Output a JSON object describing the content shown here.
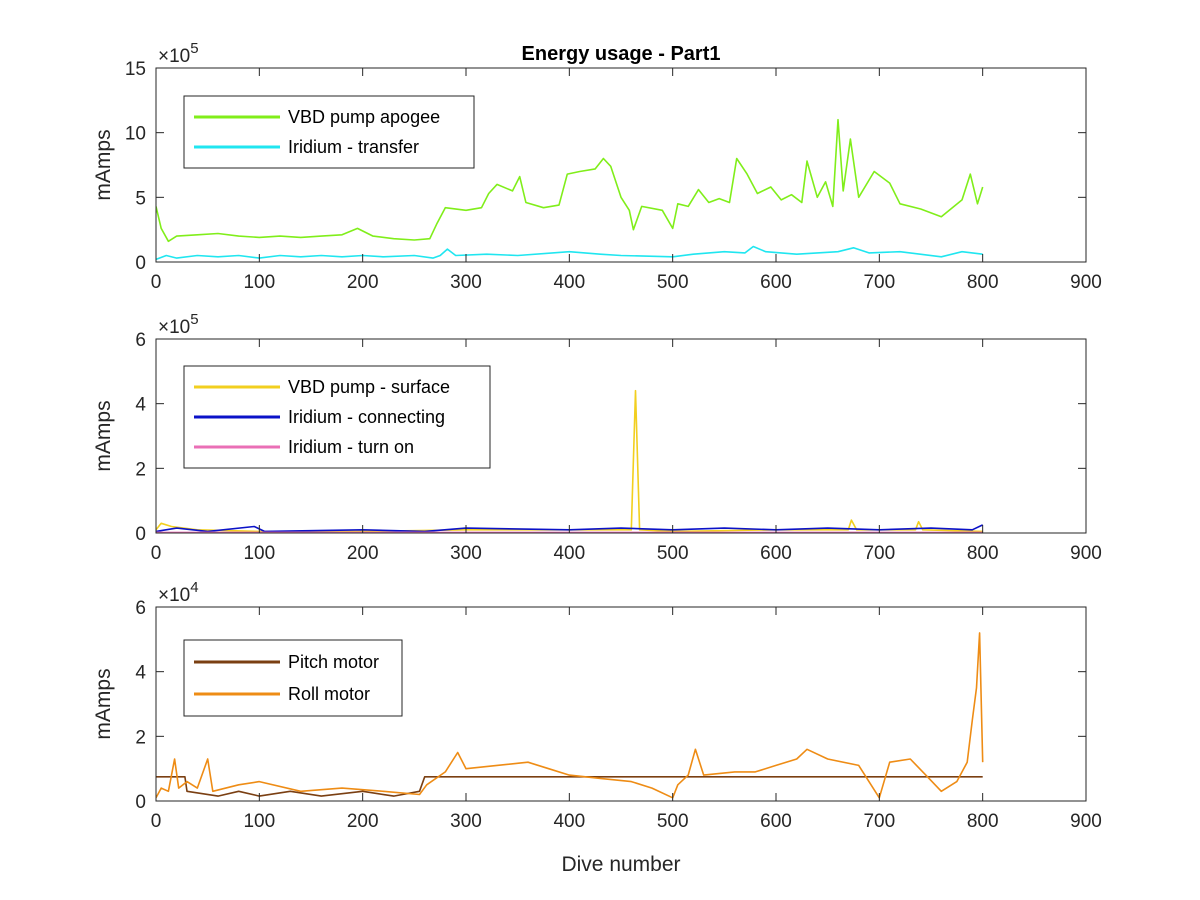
{
  "chart_data": [
    {
      "type": "line",
      "title": "Energy usage - Part1",
      "xlabel": "",
      "ylabel": "mAmps",
      "xlim": [
        0,
        900
      ],
      "ylim": [
        0,
        15
      ],
      "y_multiplier": "×10",
      "y_exponent": "5",
      "x_ticks": [
        "0",
        "100",
        "200",
        "300",
        "400",
        "500",
        "600",
        "700",
        "800",
        "900"
      ],
      "y_ticks": [
        "0",
        "5",
        "10",
        "15"
      ],
      "legend_position": "top-left",
      "series": [
        {
          "name": "VBD pump apogee",
          "color": "#80ee1a",
          "points": [
            [
              0,
              4.3
            ],
            [
              5,
              2.6
            ],
            [
              12,
              1.6
            ],
            [
              20,
              2.0
            ],
            [
              40,
              2.1
            ],
            [
              60,
              2.2
            ],
            [
              80,
              2.0
            ],
            [
              100,
              1.9
            ],
            [
              120,
              2.0
            ],
            [
              140,
              1.9
            ],
            [
              160,
              2.0
            ],
            [
              180,
              2.1
            ],
            [
              195,
              2.6
            ],
            [
              210,
              2.0
            ],
            [
              230,
              1.8
            ],
            [
              250,
              1.7
            ],
            [
              265,
              1.8
            ],
            [
              272,
              3.0
            ],
            [
              280,
              4.2
            ],
            [
              300,
              4.0
            ],
            [
              315,
              4.2
            ],
            [
              322,
              5.3
            ],
            [
              330,
              6.0
            ],
            [
              345,
              5.5
            ],
            [
              352,
              6.6
            ],
            [
              358,
              4.6
            ],
            [
              375,
              4.2
            ],
            [
              390,
              4.4
            ],
            [
              398,
              6.8
            ],
            [
              410,
              7.0
            ],
            [
              425,
              7.2
            ],
            [
              433,
              8.0
            ],
            [
              440,
              7.4
            ],
            [
              450,
              5.0
            ],
            [
              458,
              4.0
            ],
            [
              462,
              2.5
            ],
            [
              470,
              4.3
            ],
            [
              490,
              4.0
            ],
            [
              500,
              2.6
            ],
            [
              505,
              4.5
            ],
            [
              515,
              4.3
            ],
            [
              525,
              5.6
            ],
            [
              535,
              4.6
            ],
            [
              545,
              4.9
            ],
            [
              555,
              4.6
            ],
            [
              562,
              8.0
            ],
            [
              572,
              6.8
            ],
            [
              582,
              5.3
            ],
            [
              595,
              5.8
            ],
            [
              605,
              4.8
            ],
            [
              615,
              5.2
            ],
            [
              625,
              4.6
            ],
            [
              630,
              7.8
            ],
            [
              640,
              5.0
            ],
            [
              648,
              6.2
            ],
            [
              655,
              4.3
            ],
            [
              660,
              11.0
            ],
            [
              665,
              5.5
            ],
            [
              672,
              9.5
            ],
            [
              680,
              5.0
            ],
            [
              695,
              7.0
            ],
            [
              710,
              6.1
            ],
            [
              720,
              4.5
            ],
            [
              740,
              4.1
            ],
            [
              760,
              3.5
            ],
            [
              780,
              4.8
            ],
            [
              788,
              6.8
            ],
            [
              795,
              4.5
            ],
            [
              800,
              5.8
            ]
          ]
        },
        {
          "name": "Iridium - transfer",
          "color": "#20e6f0",
          "points": [
            [
              0,
              0.2
            ],
            [
              10,
              0.5
            ],
            [
              20,
              0.3
            ],
            [
              40,
              0.5
            ],
            [
              60,
              0.4
            ],
            [
              80,
              0.5
            ],
            [
              100,
              0.3
            ],
            [
              120,
              0.5
            ],
            [
              140,
              0.4
            ],
            [
              160,
              0.5
            ],
            [
              180,
              0.4
            ],
            [
              200,
              0.5
            ],
            [
              220,
              0.4
            ],
            [
              250,
              0.5
            ],
            [
              268,
              0.3
            ],
            [
              275,
              0.5
            ],
            [
              282,
              1.0
            ],
            [
              290,
              0.5
            ],
            [
              320,
              0.6
            ],
            [
              350,
              0.5
            ],
            [
              400,
              0.8
            ],
            [
              430,
              0.6
            ],
            [
              450,
              0.5
            ],
            [
              500,
              0.4
            ],
            [
              520,
              0.6
            ],
            [
              550,
              0.8
            ],
            [
              570,
              0.7
            ],
            [
              578,
              1.2
            ],
            [
              590,
              0.8
            ],
            [
              620,
              0.6
            ],
            [
              660,
              0.8
            ],
            [
              675,
              1.1
            ],
            [
              690,
              0.7
            ],
            [
              720,
              0.8
            ],
            [
              760,
              0.4
            ],
            [
              780,
              0.8
            ],
            [
              800,
              0.6
            ]
          ]
        }
      ]
    },
    {
      "type": "line",
      "title": "",
      "xlabel": "",
      "ylabel": "mAmps",
      "xlim": [
        0,
        900
      ],
      "ylim": [
        0,
        6
      ],
      "y_multiplier": "×10",
      "y_exponent": "5",
      "x_ticks": [
        "0",
        "100",
        "200",
        "300",
        "400",
        "500",
        "600",
        "700",
        "800",
        "900"
      ],
      "y_ticks": [
        "0",
        "2",
        "4",
        "6"
      ],
      "legend_position": "top-left",
      "series": [
        {
          "name": "VBD pump - surface",
          "color": "#f2cf1f",
          "points": [
            [
              0,
              0.1
            ],
            [
              5,
              0.3
            ],
            [
              15,
              0.2
            ],
            [
              40,
              0.1
            ],
            [
              100,
              0.05
            ],
            [
              200,
              0.05
            ],
            [
              300,
              0.1
            ],
            [
              400,
              0.1
            ],
            [
              460,
              0.1
            ],
            [
              464,
              4.4
            ],
            [
              468,
              0.1
            ],
            [
              500,
              0.05
            ],
            [
              600,
              0.1
            ],
            [
              670,
              0.1
            ],
            [
              673,
              0.4
            ],
            [
              678,
              0.1
            ],
            [
              735,
              0.1
            ],
            [
              738,
              0.35
            ],
            [
              742,
              0.1
            ],
            [
              800,
              0.05
            ]
          ]
        },
        {
          "name": "Iridium - connecting",
          "color": "#0b12c8",
          "points": [
            [
              0,
              0.05
            ],
            [
              20,
              0.15
            ],
            [
              50,
              0.05
            ],
            [
              95,
              0.2
            ],
            [
              105,
              0.05
            ],
            [
              200,
              0.1
            ],
            [
              260,
              0.05
            ],
            [
              300,
              0.15
            ],
            [
              400,
              0.1
            ],
            [
              450,
              0.15
            ],
            [
              500,
              0.1
            ],
            [
              550,
              0.15
            ],
            [
              600,
              0.1
            ],
            [
              650,
              0.15
            ],
            [
              700,
              0.1
            ],
            [
              750,
              0.15
            ],
            [
              790,
              0.1
            ],
            [
              800,
              0.25
            ]
          ]
        },
        {
          "name": "Iridium - turn on",
          "color": "#ea6fb6",
          "points": [
            [
              0,
              0.02
            ],
            [
              100,
              0.02
            ],
            [
              200,
              0.02
            ],
            [
              300,
              0.02
            ],
            [
              400,
              0.02
            ],
            [
              500,
              0.02
            ],
            [
              600,
              0.02
            ],
            [
              700,
              0.02
            ],
            [
              800,
              0.02
            ]
          ]
        }
      ]
    },
    {
      "type": "line",
      "title": "",
      "xlabel": "Dive number",
      "ylabel": "mAmps",
      "xlim": [
        0,
        900
      ],
      "ylim": [
        0,
        6
      ],
      "y_multiplier": "×10",
      "y_exponent": "4",
      "x_ticks": [
        "0",
        "100",
        "200",
        "300",
        "400",
        "500",
        "600",
        "700",
        "800",
        "900"
      ],
      "y_ticks": [
        "0",
        "2",
        "4",
        "6"
      ],
      "legend_position": "top-left",
      "series": [
        {
          "name": "Pitch motor",
          "color": "#7a3f12",
          "points": [
            [
              0,
              0.75
            ],
            [
              28,
              0.75
            ],
            [
              30,
              0.3
            ],
            [
              60,
              0.15
            ],
            [
              80,
              0.3
            ],
            [
              100,
              0.15
            ],
            [
              130,
              0.3
            ],
            [
              160,
              0.15
            ],
            [
              200,
              0.3
            ],
            [
              230,
              0.15
            ],
            [
              255,
              0.3
            ],
            [
              260,
              0.75
            ],
            [
              300,
              0.75
            ],
            [
              400,
              0.75
            ],
            [
              500,
              0.75
            ],
            [
              600,
              0.75
            ],
            [
              700,
              0.75
            ],
            [
              800,
              0.75
            ]
          ]
        },
        {
          "name": "Roll motor",
          "color": "#ee8c15",
          "points": [
            [
              0,
              0.1
            ],
            [
              5,
              0.4
            ],
            [
              12,
              0.3
            ],
            [
              18,
              1.3
            ],
            [
              22,
              0.4
            ],
            [
              30,
              0.6
            ],
            [
              40,
              0.4
            ],
            [
              50,
              1.3
            ],
            [
              55,
              0.3
            ],
            [
              80,
              0.5
            ],
            [
              100,
              0.6
            ],
            [
              140,
              0.3
            ],
            [
              180,
              0.4
            ],
            [
              220,
              0.3
            ],
            [
              255,
              0.2
            ],
            [
              262,
              0.5
            ],
            [
              280,
              0.9
            ],
            [
              292,
              1.5
            ],
            [
              300,
              1.0
            ],
            [
              330,
              1.1
            ],
            [
              360,
              1.2
            ],
            [
              380,
              1.0
            ],
            [
              400,
              0.8
            ],
            [
              430,
              0.7
            ],
            [
              460,
              0.6
            ],
            [
              480,
              0.4
            ],
            [
              500,
              0.1
            ],
            [
              505,
              0.5
            ],
            [
              515,
              0.8
            ],
            [
              522,
              1.6
            ],
            [
              530,
              0.8
            ],
            [
              560,
              0.9
            ],
            [
              580,
              0.9
            ],
            [
              600,
              1.1
            ],
            [
              620,
              1.3
            ],
            [
              630,
              1.6
            ],
            [
              650,
              1.3
            ],
            [
              680,
              1.1
            ],
            [
              700,
              0.1
            ],
            [
              710,
              1.2
            ],
            [
              730,
              1.3
            ],
            [
              745,
              0.8
            ],
            [
              760,
              0.3
            ],
            [
              775,
              0.6
            ],
            [
              785,
              1.2
            ],
            [
              790,
              2.5
            ],
            [
              794,
              3.5
            ],
            [
              797,
              5.2
            ],
            [
              800,
              1.2
            ]
          ]
        }
      ]
    }
  ]
}
